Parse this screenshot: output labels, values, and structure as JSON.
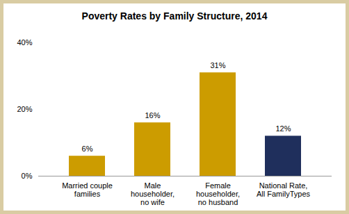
{
  "chart_data": {
    "type": "bar",
    "title": "Poverty Rates by Family Structure, 2014",
    "categories": [
      "Married couple\nfamilies",
      "Male\nhouseholder,\nno wife",
      "Female\nhouseholder,\nno husband",
      "National Rate,\nAll FamilyTypes"
    ],
    "values": [
      6,
      16,
      31,
      12
    ],
    "value_labels": [
      "6%",
      "16%",
      "31%",
      "12%"
    ],
    "colors": [
      "#CC9C00",
      "#CC9C00",
      "#CC9C00",
      "#1F2F5C"
    ],
    "ylim": [
      0,
      40
    ],
    "yticks": [
      {
        "value": 0,
        "label": "0%"
      },
      {
        "value": 20,
        "label": "20%"
      },
      {
        "value": 40,
        "label": "40%"
      }
    ],
    "grid": false,
    "data_labels": true
  }
}
